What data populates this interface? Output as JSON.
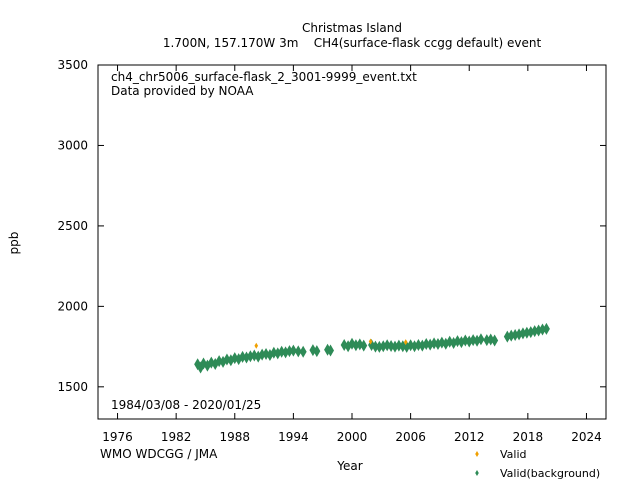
{
  "header": {
    "title": "Christmas Island",
    "subtitle": "1.700N, 157.170W 3m    CH4(surface-flask ccgg default) event"
  },
  "plot": {
    "filename": "ch4_chr5006_surface-flask_2_3001-9999_event.txt",
    "provider": "Data provided by NOAA",
    "date_range": "1984/03/08 - 2020/01/25",
    "watermark": "WMO WDCGG / JMA"
  },
  "colors": {
    "valid": "#f0a000",
    "background": "#2e8b57",
    "watermark": "#a0a0a0"
  },
  "chart_data": {
    "type": "scatter",
    "title": "Christmas Island",
    "xlabel": "Year",
    "ylabel": "ppb",
    "xlim": [
      1974,
      2026
    ],
    "ylim": [
      1300,
      3500
    ],
    "x_ticks": [
      1976,
      1982,
      1988,
      1994,
      2000,
      2006,
      2012,
      2018,
      2024
    ],
    "y_ticks": [
      1500,
      2000,
      2500,
      3000,
      3500
    ],
    "legend_position": "bottom-right",
    "series": [
      {
        "name": "Valid",
        "marker": "diamond",
        "x": [
          1990.2,
          2001.9,
          2005.5
        ],
        "y": [
          1755,
          1782,
          1778
        ]
      },
      {
        "name": "Valid(background)",
        "marker": "diamond",
        "x": [
          1984.2,
          1984.5,
          1984.8,
          1985.2,
          1985.6,
          1986.0,
          1986.4,
          1986.8,
          1987.2,
          1987.6,
          1988.0,
          1988.4,
          1988.8,
          1989.2,
          1989.6,
          1990.0,
          1990.4,
          1990.8,
          1991.2,
          1991.6,
          1992.0,
          1992.4,
          1992.8,
          1993.2,
          1993.6,
          1994.0,
          1994.5,
          1995.0,
          1996.0,
          1996.4,
          1997.5,
          1997.8,
          1999.2,
          1999.6,
          2000.0,
          2000.4,
          2000.8,
          2001.2,
          2002.0,
          2002.4,
          2002.8,
          2003.2,
          2003.6,
          2004.0,
          2004.4,
          2004.8,
          2005.2,
          2005.6,
          2006.0,
          2006.4,
          2006.8,
          2007.2,
          2007.6,
          2008.0,
          2008.4,
          2008.8,
          2009.2,
          2009.6,
          2010.0,
          2010.4,
          2010.8,
          2011.2,
          2011.6,
          2012.0,
          2012.4,
          2012.8,
          2013.2,
          2013.8,
          2014.2,
          2014.6,
          2015.9,
          2016.3,
          2016.7,
          2017.1,
          2017.5,
          2017.9,
          2018.3,
          2018.7,
          2019.1,
          2019.5,
          2019.9
        ],
        "y": [
          1640,
          1620,
          1645,
          1632,
          1650,
          1642,
          1660,
          1655,
          1670,
          1665,
          1678,
          1672,
          1686,
          1682,
          1690,
          1695,
          1688,
          1700,
          1704,
          1698,
          1712,
          1708,
          1718,
          1714,
          1722,
          1725,
          1720,
          1718,
          1728,
          1722,
          1730,
          1726,
          1760,
          1752,
          1768,
          1758,
          1764,
          1756,
          1760,
          1750,
          1748,
          1752,
          1758,
          1754,
          1750,
          1756,
          1752,
          1748,
          1758,
          1752,
          1760,
          1756,
          1766,
          1762,
          1770,
          1766,
          1775,
          1768,
          1780,
          1772,
          1784,
          1778,
          1788,
          1782,
          1790,
          1786,
          1796,
          1790,
          1794,
          1788,
          1812,
          1818,
          1822,
          1826,
          1832,
          1836,
          1840,
          1846,
          1850,
          1856,
          1860
        ]
      }
    ]
  }
}
